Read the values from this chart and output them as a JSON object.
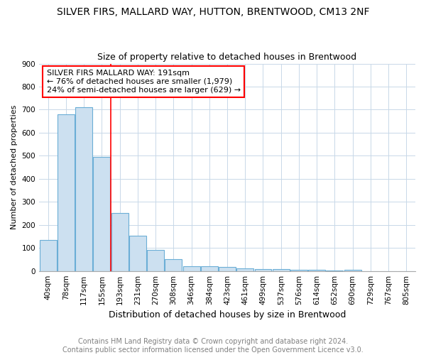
{
  "title": "SILVER FIRS, MALLARD WAY, HUTTON, BRENTWOOD, CM13 2NF",
  "subtitle": "Size of property relative to detached houses in Brentwood",
  "xlabel": "Distribution of detached houses by size in Brentwood",
  "ylabel": "Number of detached properties",
  "bar_labels": [
    "40sqm",
    "78sqm",
    "117sqm",
    "155sqm",
    "193sqm",
    "231sqm",
    "270sqm",
    "308sqm",
    "346sqm",
    "384sqm",
    "423sqm",
    "461sqm",
    "499sqm",
    "537sqm",
    "576sqm",
    "614sqm",
    "652sqm",
    "690sqm",
    "729sqm",
    "767sqm",
    "805sqm"
  ],
  "bar_values": [
    135,
    680,
    710,
    495,
    252,
    152,
    90,
    50,
    22,
    20,
    16,
    10,
    9,
    7,
    6,
    4,
    3,
    6,
    0,
    0,
    0
  ],
  "bar_color": "#cce0f0",
  "bar_edge_color": "#6baed6",
  "red_line_x": 3.5,
  "annotation_text": "SILVER FIRS MALLARD WAY: 191sqm\n← 76% of detached houses are smaller (1,979)\n24% of semi-detached houses are larger (629) →",
  "annotation_box_color": "white",
  "annotation_box_edge_color": "red",
  "ylim": [
    0,
    900
  ],
  "yticks": [
    0,
    100,
    200,
    300,
    400,
    500,
    600,
    700,
    800,
    900
  ],
  "background_color": "white",
  "grid_color": "#c8d8e8",
  "footer_text": "Contains HM Land Registry data © Crown copyright and database right 2024.\nContains public sector information licensed under the Open Government Licence v3.0.",
  "title_fontsize": 10,
  "subtitle_fontsize": 9,
  "xlabel_fontsize": 9,
  "ylabel_fontsize": 8,
  "tick_fontsize": 7.5,
  "annotation_fontsize": 8,
  "footer_fontsize": 7
}
